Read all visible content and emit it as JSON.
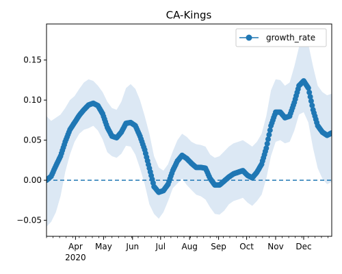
{
  "chart_data": {
    "type": "line",
    "title": "CA-Kings",
    "xlabel": "",
    "ylabel": "",
    "x_range": [
      "2020-03-01",
      "2020-12-31"
    ],
    "ylim": [
      -0.07,
      0.195
    ],
    "x_tick_labels": [
      {
        "date": "2020-04-01",
        "label": "Apr"
      },
      {
        "date": "2020-05-01",
        "label": "May"
      },
      {
        "date": "2020-06-01",
        "label": "Jun"
      },
      {
        "date": "2020-07-01",
        "label": "Jul"
      },
      {
        "date": "2020-08-01",
        "label": "Aug"
      },
      {
        "date": "2020-09-01",
        "label": "Sep"
      },
      {
        "date": "2020-10-01",
        "label": "Oct"
      },
      {
        "date": "2020-11-01",
        "label": "Nov"
      },
      {
        "date": "2020-12-01",
        "label": "Dec"
      }
    ],
    "x_year_label": "2020",
    "y_ticks": [
      -0.05,
      0.0,
      0.05,
      0.1,
      0.15
    ],
    "y_tick_labels": [
      "−0.05",
      "0.00",
      "0.05",
      "0.10",
      "0.15"
    ],
    "legend": {
      "placement": "upper-right",
      "entries": [
        "growth_rate"
      ]
    },
    "grid": false,
    "reference_line": {
      "y": 0.0,
      "style": "dashed"
    },
    "colors": {
      "line": "#1f77b4",
      "band": "#dce8f4"
    },
    "series": [
      {
        "name": "growth_rate",
        "x": [
          "2020-03-01",
          "2020-03-06",
          "2020-03-11",
          "2020-03-16",
          "2020-03-21",
          "2020-03-26",
          "2020-03-31",
          "2020-04-05",
          "2020-04-10",
          "2020-04-15",
          "2020-04-20",
          "2020-04-25",
          "2020-04-30",
          "2020-05-05",
          "2020-05-10",
          "2020-05-15",
          "2020-05-20",
          "2020-05-25",
          "2020-05-30",
          "2020-06-04",
          "2020-06-09",
          "2020-06-14",
          "2020-06-19",
          "2020-06-24",
          "2020-06-29",
          "2020-07-04",
          "2020-07-09",
          "2020-07-14",
          "2020-07-19",
          "2020-07-24",
          "2020-07-29",
          "2020-08-03",
          "2020-08-08",
          "2020-08-13",
          "2020-08-18",
          "2020-08-23",
          "2020-08-28",
          "2020-09-02",
          "2020-09-07",
          "2020-09-12",
          "2020-09-17",
          "2020-09-22",
          "2020-09-27",
          "2020-10-02",
          "2020-10-07",
          "2020-10-12",
          "2020-10-17",
          "2020-10-22",
          "2020-10-27",
          "2020-11-01",
          "2020-11-06",
          "2020-11-11",
          "2020-11-16",
          "2020-11-21",
          "2020-11-26",
          "2020-12-01",
          "2020-12-06",
          "2020-12-11",
          "2020-12-16",
          "2020-12-21",
          "2020-12-26",
          "2020-12-31"
        ],
        "y": [
          0.0,
          0.005,
          0.018,
          0.03,
          0.048,
          0.063,
          0.072,
          0.081,
          0.088,
          0.094,
          0.096,
          0.093,
          0.083,
          0.066,
          0.055,
          0.053,
          0.06,
          0.071,
          0.072,
          0.068,
          0.055,
          0.038,
          0.015,
          -0.008,
          -0.015,
          -0.013,
          -0.005,
          0.012,
          0.024,
          0.031,
          0.027,
          0.021,
          0.016,
          0.016,
          0.015,
          0.002,
          -0.006,
          -0.006,
          -0.001,
          0.004,
          0.008,
          0.01,
          0.012,
          0.006,
          0.003,
          0.01,
          0.02,
          0.04,
          0.068,
          0.085,
          0.085,
          0.078,
          0.08,
          0.097,
          0.118,
          0.124,
          0.115,
          0.088,
          0.068,
          0.06,
          0.056,
          0.059
        ],
        "lower": [
          -0.058,
          -0.052,
          -0.04,
          -0.02,
          0.01,
          0.032,
          0.048,
          0.058,
          0.063,
          0.065,
          0.068,
          0.062,
          0.051,
          0.035,
          0.03,
          0.028,
          0.033,
          0.043,
          0.042,
          0.032,
          0.015,
          -0.005,
          -0.03,
          -0.042,
          -0.048,
          -0.04,
          -0.026,
          -0.01,
          -0.004,
          0.002,
          -0.006,
          -0.012,
          -0.018,
          -0.02,
          -0.024,
          -0.034,
          -0.042,
          -0.043,
          -0.038,
          -0.03,
          -0.026,
          -0.024,
          -0.022,
          -0.028,
          -0.032,
          -0.026,
          -0.018,
          0.002,
          0.03,
          0.048,
          0.05,
          0.046,
          0.048,
          0.062,
          0.082,
          0.085,
          0.072,
          0.04,
          0.015,
          0.002,
          -0.005,
          -0.002
        ],
        "upper": [
          0.08,
          0.074,
          0.078,
          0.082,
          0.09,
          0.1,
          0.105,
          0.114,
          0.122,
          0.126,
          0.124,
          0.118,
          0.11,
          0.098,
          0.09,
          0.088,
          0.098,
          0.115,
          0.12,
          0.114,
          0.1,
          0.08,
          0.058,
          0.03,
          0.016,
          0.012,
          0.02,
          0.036,
          0.05,
          0.058,
          0.054,
          0.048,
          0.045,
          0.044,
          0.042,
          0.032,
          0.028,
          0.03,
          0.036,
          0.042,
          0.046,
          0.048,
          0.05,
          0.046,
          0.042,
          0.048,
          0.058,
          0.08,
          0.112,
          0.126,
          0.125,
          0.118,
          0.122,
          0.142,
          0.166,
          0.176,
          0.17,
          0.142,
          0.118,
          0.11,
          0.106,
          0.108
        ]
      }
    ]
  }
}
